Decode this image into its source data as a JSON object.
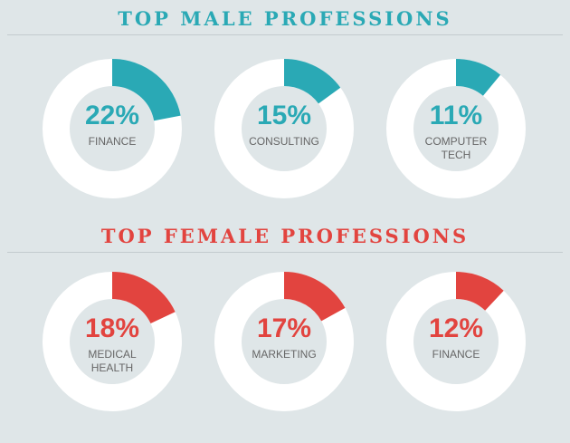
{
  "chart_data": [
    {
      "type": "donut",
      "title": "TOP MALE PROFESSIONS",
      "color": "#2aa9b5",
      "categories": [
        "FINANCE",
        "CONSULTING",
        "COMPUTER TECH"
      ],
      "values": [
        22,
        15,
        11
      ],
      "value_labels": [
        "22%",
        "15%",
        "11%"
      ]
    },
    {
      "type": "donut",
      "title": "TOP FEMALE PROFESSIONS",
      "color": "#e2443f",
      "categories": [
        "MEDICAL HEALTH",
        "MARKETING",
        "FINANCE"
      ],
      "values": [
        18,
        17,
        12
      ],
      "value_labels": [
        "18%",
        "17%",
        "12%"
      ]
    }
  ]
}
